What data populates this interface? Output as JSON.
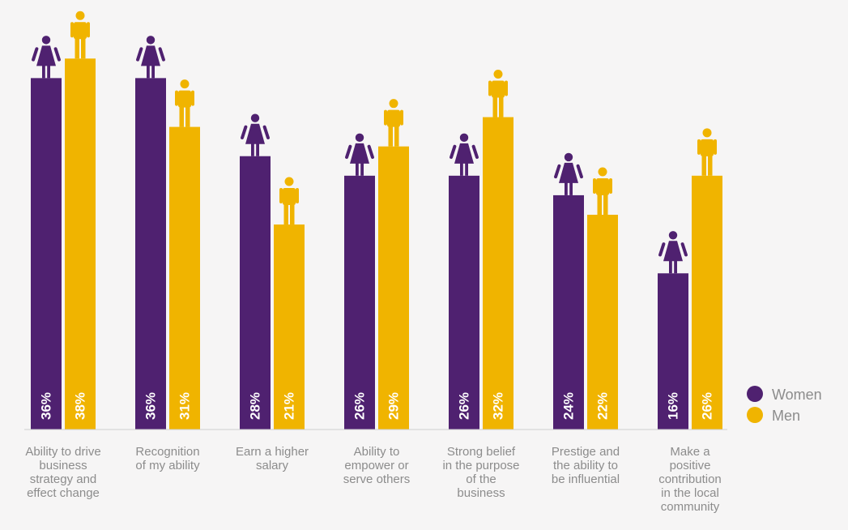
{
  "chart_data": {
    "type": "bar",
    "categories": [
      "Ability to drive business strategy and effect change",
      "Recognition of my ability",
      "Earn a higher salary",
      "Ability to empower or serve others",
      "Strong belief in the purpose of the business",
      "Prestige and the ability to be influential",
      "Make a positive contribution in the local community"
    ],
    "category_lines": [
      [
        "Ability to drive",
        "business",
        "strategy and",
        "effect change"
      ],
      [
        "Recognition",
        "of my ability"
      ],
      [
        "Earn a higher",
        "salary"
      ],
      [
        "Ability to",
        "empower or",
        "serve others"
      ],
      [
        "Strong belief",
        "in the purpose",
        "of the",
        "business"
      ],
      [
        "Prestige and",
        "the ability to",
        "be influential"
      ],
      [
        "Make a",
        "positive",
        "contribution",
        "in the local",
        "community"
      ]
    ],
    "series": [
      {
        "name": "Women",
        "color": "#4f2170",
        "icon": "woman-icon",
        "values": [
          36,
          36,
          28,
          26,
          26,
          24,
          16
        ]
      },
      {
        "name": "Men",
        "color": "#f0b400",
        "icon": "man-icon",
        "values": [
          38,
          31,
          21,
          29,
          32,
          22,
          26
        ]
      }
    ],
    "value_labels": [
      [
        "36%",
        "36%",
        "28%",
        "26%",
        "26%",
        "24%",
        "16%"
      ],
      [
        "38%",
        "31%",
        "21%",
        "29%",
        "32%",
        "22%",
        "26%"
      ]
    ],
    "ylim": [
      0,
      44
    ],
    "title": "",
    "xlabel": "",
    "ylabel": "",
    "grid": false,
    "legend_position": "right"
  },
  "legend": [
    {
      "label": "Women",
      "color": "#4f2170"
    },
    {
      "label": "Men",
      "color": "#f0b400"
    }
  ]
}
